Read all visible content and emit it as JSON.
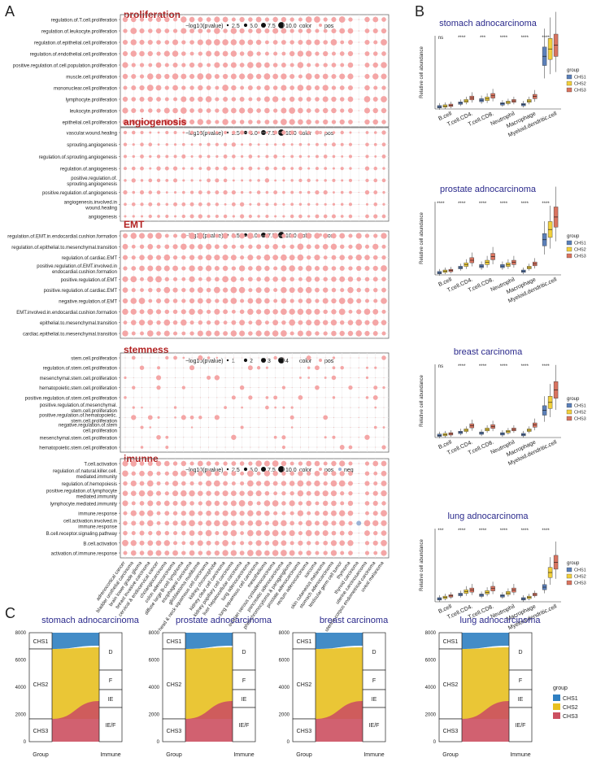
{
  "panel_labels": {
    "a": "A",
    "b": "B",
    "c": "C"
  },
  "colors": {
    "dot": "#f4a6a6",
    "neg_dot": "#9bb3d6",
    "title_red": "#b22222",
    "title_blue": "#2b2a8c",
    "chs1": "#5b7fb9",
    "chs2": "#f2d03b",
    "chs3": "#d9735f",
    "flow_blue": "#2f7fc1",
    "flow_yellow": "#e8c020",
    "flow_red": "#cc5060"
  },
  "columns": [
    "adrenocortical cancer",
    "bladder urothelial carcinoma",
    "brain lower grade glioma",
    "breast invasive carcinoma",
    "cervical & endocervical cancer",
    "cholangiocarcinoma",
    "colon adenocarcinoma",
    "diffuse large B-cell lymphoma",
    "esophageal carcinoma",
    "glioblastoma multiforme",
    "head & neck squamous cell carcinoma",
    "kidney chromophobe",
    "kidney clear cell carcinoma",
    "kidney papillary cell carcinoma",
    "liver hepatocellular carcinoma",
    "lung adenocarcinoma",
    "lung squamous cell carcinoma",
    "mesothelioma",
    "ovarian serous cystadenocarcinoma",
    "pancreatic adenocarcinoma",
    "pheochromocytoma & paraganglioma",
    "prostate adenocarcinoma",
    "rectum adenocarcinoma",
    "sarcoma",
    "skin cutaneous melanoma",
    "stomach adenocarcinoma",
    "testicular germ cell tumor",
    "thymoma",
    "thyroid carcinoma",
    "uterine carcinosarcoma",
    "uterine corpus endometrioid carcinoma",
    "uveal melanoma"
  ],
  "dotplots": [
    {
      "title": "proliferation",
      "legend": "−log10(pvalue)",
      "legend_sizes": [
        "2.5",
        "5.0",
        "7.5",
        "10.0"
      ],
      "legend_color": "color",
      "legend_pos": "pos",
      "legend_neg": "",
      "rows": [
        "regulation.of.T.cell.proliferation",
        "regulation.of.leukocyte.proliferation",
        "regulation.of.epithelial.cell.proliferation",
        "regulation.of.endothelial.cell.proliferation",
        "positive.regulation.of.cell.population.proliferation",
        "muscle.cell.proliferation",
        "mononuclear.cell.proliferation",
        "lymphocyte.proliferation",
        "leukocyte.proliferation",
        "epithelial.cell.proliferation"
      ]
    },
    {
      "title": "angiogenosis",
      "legend": "−log10(pvalue)",
      "legend_sizes": [
        "2.5",
        "5.0",
        "7.5",
        "10.0"
      ],
      "legend_color": "color",
      "legend_pos": "pos",
      "legend_neg": "",
      "rows": [
        "vascular.wound.healing",
        "sprouting.angiogenesis",
        "regulation.of.sprouting.angiogenesis",
        "regulation.of.angiogenesis",
        "positive.regulation.of.\nsprouting.angiogenesis",
        "positive.regulation.of.angiogenesis",
        "angiogenesis.involved.in\nwound.healing",
        "angiogenesis"
      ]
    },
    {
      "title": "EMT",
      "legend": "−log10(pvalue)",
      "legend_sizes": [
        "2.5",
        "5.0",
        "7.5",
        "10.0"
      ],
      "legend_color": "color",
      "legend_pos": "pos",
      "legend_neg": "",
      "rows": [
        "regulation.of.EMT.in.endocardial.cushion.formation",
        "regulation.of.epithelial.to.mesenchymal.transition",
        "regulation.of.cardiac.EMT",
        "positive.regulation.of.EMT.involved.in\nendocardial.cushion.formation",
        "positive.regulation.of.EMT",
        "positive.regulation.of.cardiac.EMT",
        "negative.regulation.of.EMT",
        "EMT.involved.in.endocardial.cushion.formation",
        "epithelial.to.mesenchymal.transition",
        "cardiac.epithelial.to.mesenchymal.transition"
      ]
    },
    {
      "title": "stemness",
      "legend": "−log10(pvalue)",
      "legend_sizes": [
        "1",
        "2",
        "3",
        "4"
      ],
      "legend_color": "color",
      "legend_pos": "pos",
      "legend_neg": "",
      "rows": [
        "stem.cell.proliferation",
        "regulation.of.stem.cell.proliferation",
        "mesenchymal.stem.cell.proliferation",
        "hematopoietic.stem.cell.proliferation",
        "positive.regulation.of.stem.cell.proliferation",
        "positive.regulation.of.mesenchymal.\nstem.cell.proliferation",
        "positive.regulation.of.hematopoietic.\nstem.cell.proliferation",
        "negative.regulation.of.stem\ncell.proliferation",
        "mesenchymal.stem.cell.proliferation",
        "hematopoietic.stem.cell.proliferation"
      ]
    },
    {
      "title": "imunne",
      "legend": "−log10(pvalue)",
      "legend_sizes": [
        "2.5",
        "5.0",
        "7.5",
        "10.0"
      ],
      "legend_color": "color",
      "legend_pos": "pos",
      "legend_neg": "neg",
      "rows": [
        "T.cell.activation",
        "regulation.of.natural.killer.cell.\nmediated.immunity",
        "regulation.of.hemopoiesis",
        "positive.regulation.of.lymphocyte\nmediated.immunity",
        "lymphocyte.mediated.immunity",
        "immune.response",
        "cell.activation.involved.in\nimmune.response",
        "B.cell.receptor.signaling.pathway",
        "B.cell.activation",
        "activation.of.immune.response"
      ]
    }
  ],
  "boxplots": [
    {
      "title": "stomach adnocarcinoma",
      "sig": [
        "ns",
        "****",
        "***",
        "****",
        "****",
        "****"
      ]
    },
    {
      "title": "prostate adnocarcinoma",
      "sig": [
        "****",
        "****",
        "****",
        "****",
        "****",
        "****"
      ]
    },
    {
      "title": "breast carcinoma",
      "sig": [
        "ns",
        "****",
        "****",
        "****",
        "****",
        "****"
      ]
    },
    {
      "title": "lung adnocarcinoma",
      "sig": [
        "***",
        "****",
        "****",
        "****",
        "****",
        "****"
      ]
    }
  ],
  "box_common": {
    "ylabel": "Relative cell abundance",
    "categories": [
      "B.cell",
      "T.cell.CD4.",
      "T.cell.CD8.",
      "Neutrophil",
      "Macrophage",
      "Myeloid.dendritic.cell"
    ],
    "legend_title": "group",
    "groups": [
      "CHS1",
      "CHS2",
      "CHS3"
    ]
  },
  "sankeys": [
    {
      "title": "stomach adnocarcinoma"
    },
    {
      "title": "prostate adnocarcinoma"
    },
    {
      "title": "breast carcinoma"
    },
    {
      "title": "lung adnocarcinoma"
    }
  ],
  "sankey_common": {
    "yticks": [
      "8000",
      "6000",
      "4000",
      "2000",
      "0"
    ],
    "left_nodes": [
      "CHS1",
      "CHS2",
      "CHS3"
    ],
    "right_nodes": [
      "D",
      "F",
      "IE",
      "IE/F"
    ],
    "xlabel_left": "Group",
    "xlabel_right": "Immune",
    "legend_title": "group",
    "legend_items": [
      "CHS1",
      "CHS2",
      "CHS3"
    ]
  }
}
